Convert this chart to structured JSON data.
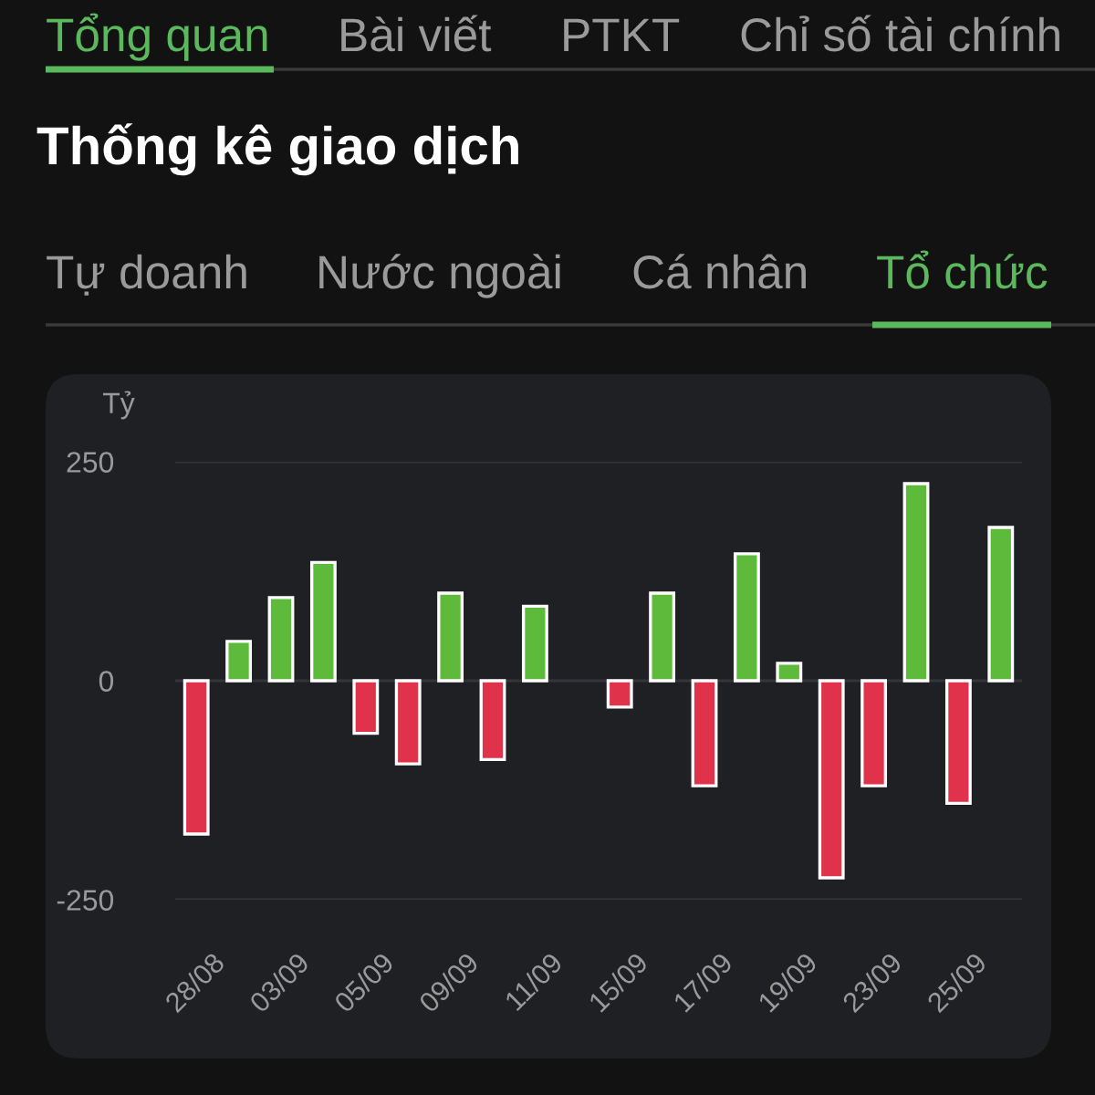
{
  "chart_data": {
    "type": "bar",
    "title": "Thống kê giao dịch",
    "ylabel": "Tỷ",
    "annotations": [
      "Tổng quan",
      "Bài viết",
      "PTKT",
      "Chỉ số tài chính",
      "Tự doanh",
      "Nước ngoài",
      "Cá nhân",
      "Tổ chức"
    ],
    "categories": [
      "28/08",
      null,
      "03/09",
      null,
      "05/09",
      null,
      "09/09",
      null,
      "11/09",
      null,
      "15/09",
      null,
      "17/09",
      null,
      "19/09",
      null,
      "23/09",
      null,
      "25/09",
      null
    ],
    "values": [
      -175,
      45,
      95,
      135,
      -60,
      -95,
      100,
      -90,
      85,
      null,
      -30,
      100,
      -120,
      145,
      20,
      -225,
      -120,
      225,
      -140,
      175
    ],
    "colors": [
      "#e0334b",
      "#5dba3b",
      "#5dba3b",
      "#5dba3b",
      "#e0334b",
      "#e0334b",
      "#5dba3b",
      "#e0334b",
      "#5dba3b",
      "#5dba3b",
      "#e0334b",
      "#5dba3b",
      "#e0334b",
      "#5dba3b",
      "#5dba3b",
      "#e0334b",
      "#e0334b",
      "#5dba3b",
      "#e0334b",
      "#5dba3b"
    ],
    "ylim": [
      -250,
      250
    ],
    "yticks": [
      -250,
      0,
      250
    ],
    "grid": "y"
  }
}
